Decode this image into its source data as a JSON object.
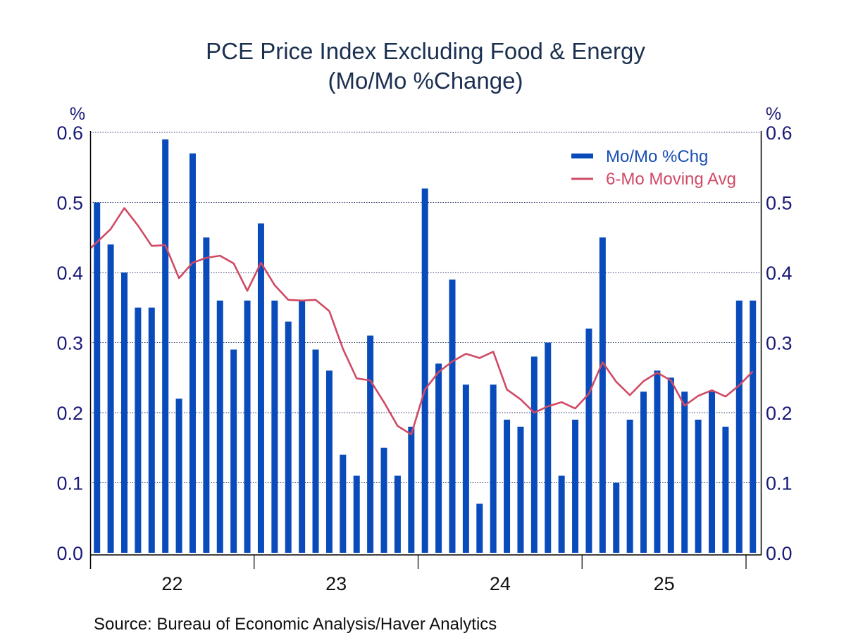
{
  "chart_data": {
    "type": "bar",
    "title": "PCE Price Index Excluding Food & Energy",
    "subtitle": "(Mo/Mo %Change)",
    "ylabel_left": "%",
    "ylabel_right": "%",
    "xlabel": "",
    "ylim": [
      0.0,
      0.6
    ],
    "yticks": [
      "0.0",
      "0.1",
      "0.2",
      "0.3",
      "0.4",
      "0.5",
      "0.6"
    ],
    "grid": true,
    "legend_position": "top-right",
    "x_tick_labels": [
      "22",
      "23",
      "24",
      "25"
    ],
    "x": [
      "Jan-22",
      "Feb-22",
      "Mar-22",
      "Apr-22",
      "May-22",
      "Jun-22",
      "Jul-22",
      "Aug-22",
      "Sep-22",
      "Oct-22",
      "Nov-22",
      "Dec-22",
      "Jan-23",
      "Feb-23",
      "Mar-23",
      "Apr-23",
      "May-23",
      "Jun-23",
      "Jul-23",
      "Aug-23",
      "Sep-23",
      "Oct-23",
      "Nov-23",
      "Dec-23",
      "Jan-24",
      "Feb-24",
      "Mar-24",
      "Apr-24",
      "May-24",
      "Jun-24",
      "Jul-24",
      "Aug-24",
      "Sep-24",
      "Oct-24",
      "Nov-24",
      "Dec-24",
      "Jan-25",
      "Feb-25",
      "Mar-25",
      "Apr-25",
      "May-25",
      "Jun-25",
      "Jul-25",
      "Aug-25",
      "Sep-25",
      "Oct-25",
      "Nov-25",
      "Dec-25",
      "Jan-26"
    ],
    "series": [
      {
        "name": "Mo/Mo %Chg",
        "type": "bar",
        "color": "#0a4bbb",
        "values": [
          0.5,
          0.44,
          0.4,
          0.35,
          0.35,
          0.59,
          0.22,
          0.57,
          0.45,
          0.36,
          0.29,
          0.36,
          0.47,
          0.36,
          0.33,
          0.36,
          0.29,
          0.26,
          0.14,
          0.11,
          0.31,
          0.15,
          0.11,
          0.18,
          0.52,
          0.27,
          0.39,
          0.24,
          0.07,
          0.24,
          0.19,
          0.18,
          0.28,
          0.3,
          0.11,
          0.19,
          0.32,
          0.45,
          0.1,
          0.19,
          0.23,
          0.26,
          0.25,
          0.23,
          0.19,
          0.23,
          0.18,
          0.36,
          0.36
        ]
      },
      {
        "name": "6-Mo Moving Avg",
        "type": "line",
        "color": "#d04a64",
        "values": [
          0.435,
          0.462,
          0.492,
          0.467,
          0.438,
          0.439,
          0.392,
          0.414,
          0.421,
          0.424,
          0.413,
          0.374,
          0.414,
          0.382,
          0.361,
          0.36,
          0.361,
          0.345,
          0.291,
          0.249,
          0.246,
          0.215,
          0.181,
          0.169,
          0.233,
          0.258,
          0.273,
          0.284,
          0.278,
          0.287,
          0.233,
          0.219,
          0.2,
          0.209,
          0.215,
          0.206,
          0.227,
          0.272,
          0.244,
          0.225,
          0.245,
          0.257,
          0.246,
          0.21,
          0.224,
          0.232,
          0.223,
          0.239,
          0.259
        ]
      }
    ],
    "source": "Source:  Bureau of Economic Analysis/Haver Analytics"
  }
}
